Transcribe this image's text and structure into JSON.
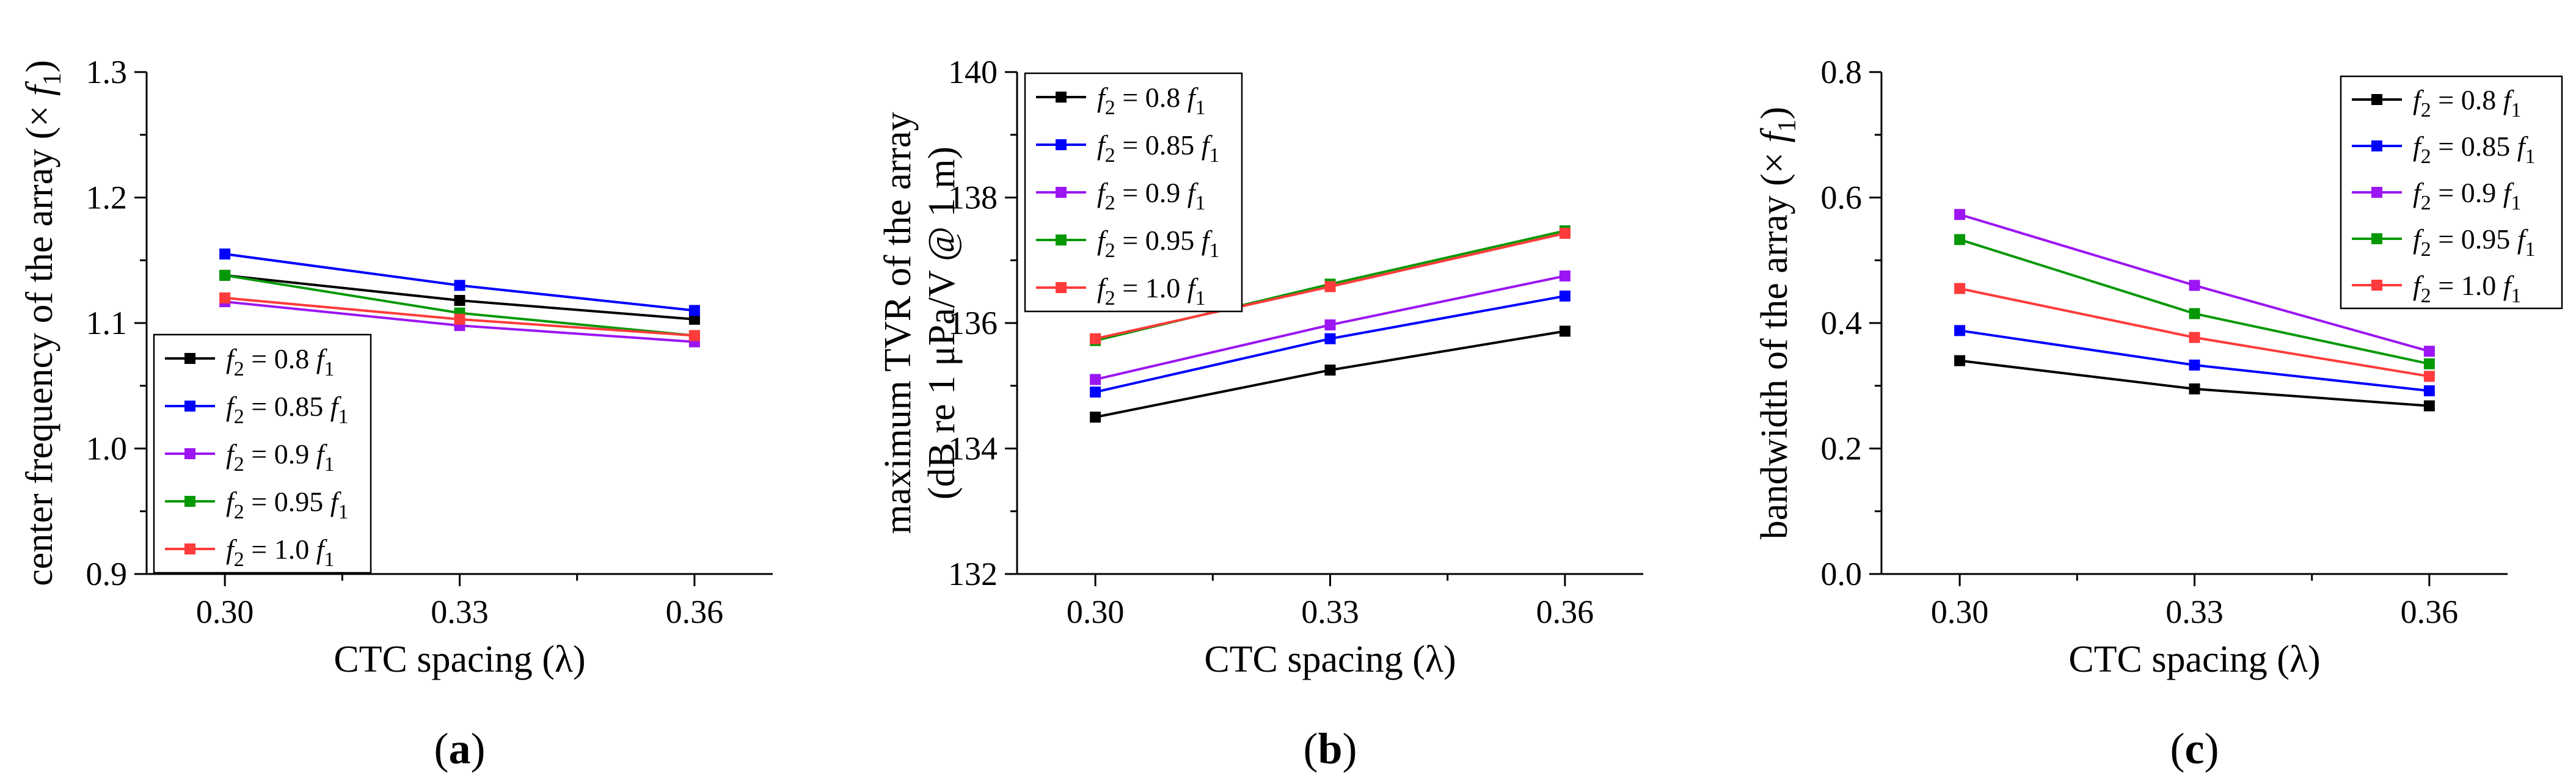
{
  "chart_data": [
    {
      "type": "line",
      "panel_label": "(a)",
      "xlabel": "CTC spacing (λ)",
      "ylabel": "center frequency of the array (× f1)",
      "ylabel_main": "center frequency of the array (×",
      "ylabel_var": "f",
      "ylabel_sub": "1",
      "ylabel_tail": ")",
      "x": [
        0.3,
        0.33,
        0.36
      ],
      "x_tick_labels": [
        "0.30",
        "0.33",
        "0.36"
      ],
      "xlim": [
        0.29,
        0.37
      ],
      "ylim": [
        0.9,
        1.3
      ],
      "y_ticks": [
        0.9,
        1.0,
        1.1,
        1.2,
        1.3
      ],
      "y_tick_labels": [
        "0.9",
        "1.0",
        "1.1",
        "1.2",
        "1.3"
      ],
      "minor_y": true,
      "legend_position": "bottom-left",
      "series": [
        {
          "name": "f2 = 0.8 f1",
          "values": [
            1.138,
            1.118,
            1.103
          ],
          "color": "#000000"
        },
        {
          "name": "f2 = 0.85 f1",
          "values": [
            1.155,
            1.13,
            1.11
          ],
          "color": "#0000ff"
        },
        {
          "name": "f2 = 0.9 f1",
          "values": [
            1.117,
            1.098,
            1.085
          ],
          "color": "#9b16f2"
        },
        {
          "name": "f2 = 0.95 f1",
          "values": [
            1.138,
            1.108,
            1.09
          ],
          "color": "#079807"
        },
        {
          "name": "f2 = 1.0 f1",
          "values": [
            1.12,
            1.103,
            1.09
          ],
          "color": "#ff3b3b"
        }
      ]
    },
    {
      "type": "line",
      "panel_label": "(b)",
      "xlabel": "CTC spacing (λ)",
      "ylabel_line1": "maximum TVR of the array",
      "ylabel_line2": "(dB re 1 μPa/V @ 1 m)",
      "x": [
        0.3,
        0.33,
        0.36
      ],
      "x_tick_labels": [
        "0.30",
        "0.33",
        "0.36"
      ],
      "xlim": [
        0.29,
        0.37
      ],
      "ylim": [
        132,
        140
      ],
      "y_ticks": [
        132,
        134,
        136,
        138,
        140
      ],
      "y_tick_labels": [
        "132",
        "134",
        "136",
        "138",
        "140"
      ],
      "minor_y": true,
      "legend_position": "top-left",
      "series": [
        {
          "name": "f2 = 0.8 f1",
          "values": [
            134.5,
            135.25,
            135.87
          ],
          "color": "#000000"
        },
        {
          "name": "f2 = 0.85 f1",
          "values": [
            134.9,
            135.75,
            136.43
          ],
          "color": "#0000ff"
        },
        {
          "name": "f2 = 0.9 f1",
          "values": [
            135.1,
            135.97,
            136.75
          ],
          "color": "#9b16f2"
        },
        {
          "name": "f2 = 0.95 f1",
          "values": [
            135.72,
            136.62,
            137.47
          ],
          "color": "#079807"
        },
        {
          "name": "f2 = 1.0 f1",
          "values": [
            135.75,
            136.58,
            137.43
          ],
          "color": "#ff3b3b"
        }
      ]
    },
    {
      "type": "line",
      "panel_label": "(c)",
      "xlabel": "CTC spacing (λ)",
      "ylabel": "bandwidth of the array (× f1)",
      "ylabel_main": "bandwidth of the array (×",
      "ylabel_var": "f",
      "ylabel_sub": "1",
      "ylabel_tail": ")",
      "x": [
        0.3,
        0.33,
        0.36
      ],
      "x_tick_labels": [
        "0.30",
        "0.33",
        "0.36"
      ],
      "xlim": [
        0.29,
        0.37
      ],
      "ylim": [
        0.0,
        0.8
      ],
      "y_ticks": [
        0.0,
        0.2,
        0.4,
        0.6,
        0.8
      ],
      "y_tick_labels": [
        "0.0",
        "0.2",
        "0.4",
        "0.6",
        "0.8"
      ],
      "minor_y": true,
      "legend_position": "top-right",
      "series": [
        {
          "name": "f2 = 0.8 f1",
          "values": [
            0.34,
            0.295,
            0.268
          ],
          "color": "#000000"
        },
        {
          "name": "f2 = 0.85 f1",
          "values": [
            0.388,
            0.333,
            0.292
          ],
          "color": "#0000ff"
        },
        {
          "name": "f2 = 0.9 f1",
          "values": [
            0.573,
            0.46,
            0.355
          ],
          "color": "#9b16f2"
        },
        {
          "name": "f2 = 0.95 f1",
          "values": [
            0.533,
            0.415,
            0.335
          ],
          "color": "#079807"
        },
        {
          "name": "f2 = 1.0 f1",
          "values": [
            0.455,
            0.377,
            0.315
          ],
          "color": "#ff3b3b"
        }
      ]
    }
  ]
}
